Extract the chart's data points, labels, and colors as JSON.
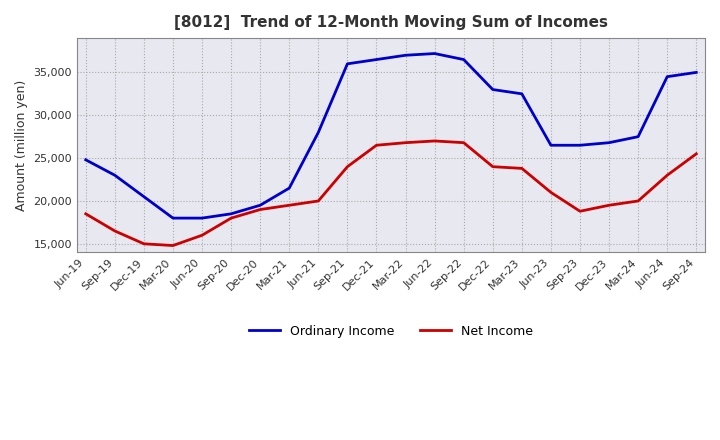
{
  "title": "[8012]  Trend of 12-Month Moving Sum of Incomes",
  "ylabel": "Amount (million yen)",
  "ylim": [
    14000,
    39000
  ],
  "yticks": [
    15000,
    20000,
    25000,
    30000,
    35000
  ],
  "background_color": "#ffffff",
  "plot_bg_color": "#e8e8f0",
  "grid_color": "#aaaaaa",
  "ordinary_income_color": "#0000cc",
  "net_income_color": "#cc0000",
  "x_labels": [
    "Jun-19",
    "Sep-19",
    "Dec-19",
    "Mar-20",
    "Jun-20",
    "Sep-20",
    "Dec-20",
    "Mar-21",
    "Jun-21",
    "Sep-21",
    "Dec-21",
    "Mar-22",
    "Jun-22",
    "Sep-22",
    "Dec-22",
    "Mar-23",
    "Jun-23",
    "Sep-23",
    "Dec-23",
    "Mar-24",
    "Jun-24",
    "Sep-24"
  ],
  "ordinary_income": [
    24800,
    23000,
    20500,
    18000,
    18000,
    18500,
    19500,
    21500,
    28000,
    36000,
    36500,
    37000,
    37200,
    36500,
    33000,
    32500,
    26500,
    26500,
    26800,
    27500,
    34500,
    35000
  ],
  "net_income": [
    18500,
    16500,
    15000,
    14800,
    16000,
    18000,
    19000,
    19500,
    20000,
    24000,
    26500,
    26800,
    27000,
    26800,
    24000,
    23800,
    21000,
    18800,
    19500,
    20000,
    23000,
    25500
  ]
}
